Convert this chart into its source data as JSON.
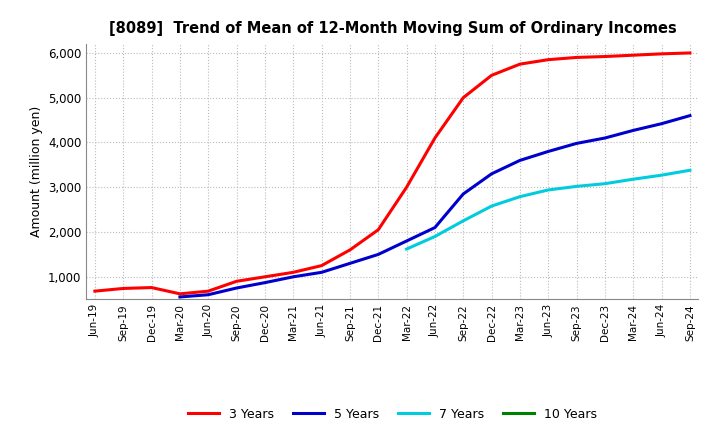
{
  "title": "[8089]  Trend of Mean of 12-Month Moving Sum of Ordinary Incomes",
  "ylabel": "Amount (million yen)",
  "ylim": [
    500,
    6200
  ],
  "yticks": [
    1000,
    2000,
    3000,
    4000,
    5000,
    6000
  ],
  "background_color": "#ffffff",
  "grid_color": "#bbbbbb",
  "x_labels": [
    "Jun-19",
    "Sep-19",
    "Dec-19",
    "Mar-20",
    "Jun-20",
    "Sep-20",
    "Dec-20",
    "Mar-21",
    "Jun-21",
    "Sep-21",
    "Dec-21",
    "Mar-22",
    "Jun-22",
    "Sep-22",
    "Dec-22",
    "Mar-23",
    "Jun-23",
    "Sep-23",
    "Dec-23",
    "Mar-24",
    "Jun-24",
    "Sep-24"
  ],
  "series": {
    "3 Years": {
      "color": "#ff0000",
      "data_x": [
        0,
        1,
        2,
        3,
        4,
        5,
        6,
        7,
        8,
        9,
        10,
        11,
        12,
        13,
        14,
        15,
        16,
        17,
        18,
        19,
        20,
        21
      ],
      "data_y": [
        680,
        740,
        760,
        620,
        680,
        900,
        1000,
        1100,
        1250,
        1600,
        2050,
        3000,
        4100,
        5000,
        5500,
        5750,
        5850,
        5900,
        5920,
        5950,
        5980,
        6000
      ]
    },
    "5 Years": {
      "color": "#0000cd",
      "data_x": [
        3,
        4,
        5,
        6,
        7,
        8,
        9,
        10,
        11,
        12,
        13,
        14,
        15,
        16,
        17,
        18,
        19,
        20,
        21
      ],
      "data_y": [
        550,
        600,
        750,
        870,
        1000,
        1100,
        1300,
        1500,
        1800,
        2100,
        2850,
        3300,
        3600,
        3800,
        3980,
        4100,
        4270,
        4420,
        4600
      ]
    },
    "7 Years": {
      "color": "#00ccdd",
      "data_x": [
        11,
        12,
        13,
        14,
        15,
        16,
        17,
        18,
        19,
        20,
        21
      ],
      "data_y": [
        1620,
        1900,
        2250,
        2580,
        2790,
        2940,
        3020,
        3080,
        3180,
        3270,
        3380
      ]
    },
    "10 Years": {
      "color": "#008000",
      "data_x": [],
      "data_y": []
    }
  },
  "legend": {
    "labels": [
      "3 Years",
      "5 Years",
      "7 Years",
      "10 Years"
    ],
    "colors": [
      "#ff0000",
      "#0000cd",
      "#00ccdd",
      "#008000"
    ],
    "ncol": 4
  }
}
